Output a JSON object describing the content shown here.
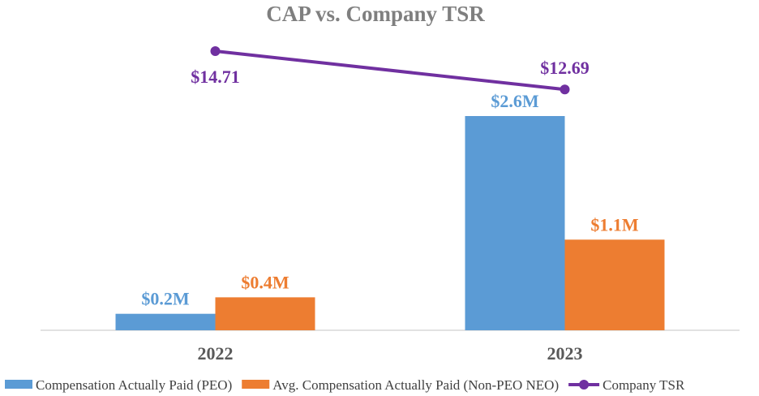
{
  "chart_data": {
    "type": "bar",
    "title": "CAP vs. Company TSR",
    "categories": [
      "2022",
      "2023"
    ],
    "series": [
      {
        "name": "Compensation Actually Paid (PEO)",
        "kind": "bar",
        "color": "#5b9bd5",
        "values": [
          0.2,
          2.6
        ],
        "labels": [
          "$0.2M",
          "$2.6M"
        ]
      },
      {
        "name": "Avg. Compensation Actually Paid (Non-PEO NEO)",
        "kind": "bar",
        "color": "#ed7d31",
        "values": [
          0.4,
          1.1
        ],
        "labels": [
          "$0.4M",
          "$1.1M"
        ]
      },
      {
        "name": "Company TSR",
        "kind": "line",
        "color": "#7030a0",
        "values": [
          14.71,
          12.69
        ],
        "labels": [
          "$14.71",
          "$12.69"
        ]
      }
    ],
    "bar_axis_range": [
      0,
      2.6
    ],
    "line_axis_range": [
      0,
      14.71
    ],
    "xlabel": "",
    "ylabel": "",
    "grid": false,
    "legend_position": "bottom"
  }
}
